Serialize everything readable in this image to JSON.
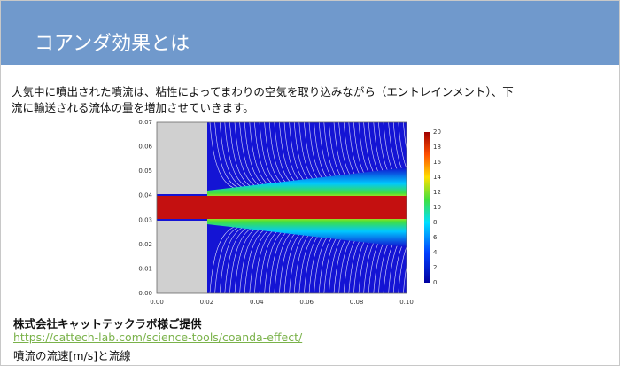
{
  "header": {
    "title": "コアンダ効果とは"
  },
  "body": {
    "lines": [
      "大気中に噴出された噴流は、粘性によってまわりの空気を取り込みながら（エントレインメント）、下",
      "流に輸送される流体の量を増加させていきます。"
    ]
  },
  "figure": {
    "x_ticks": [
      "0.00",
      "0.02",
      "0.04",
      "0.06",
      "0.08",
      "0.10"
    ],
    "y_ticks": [
      "0.00",
      "0.01",
      "0.02",
      "0.03",
      "0.04",
      "0.05",
      "0.06",
      "0.07"
    ],
    "colorbar_ticks": [
      "0",
      "2",
      "4",
      "6",
      "8",
      "10",
      "12",
      "14",
      "16",
      "18",
      "20"
    ]
  },
  "caption": {
    "credit": "株式会社キャットテックラボ様ご提供",
    "link": "https://cattech-lab.com/science-tools/coanda-effect/",
    "note": "噴流の流速[m/s]と流線"
  }
}
